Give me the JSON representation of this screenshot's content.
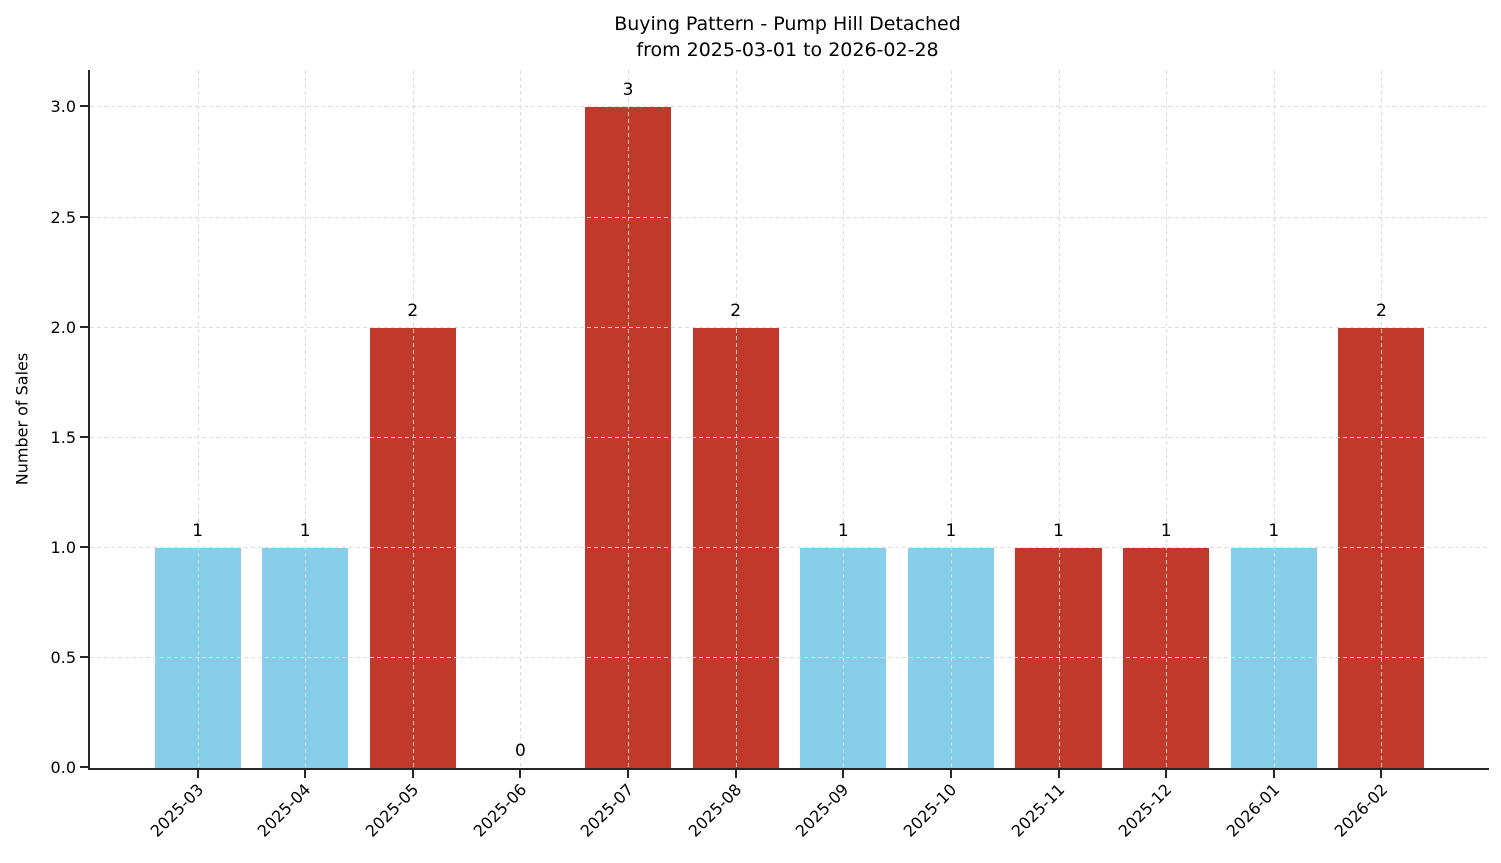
{
  "chart_data": {
    "type": "bar",
    "title": "Buying Pattern - Pump Hill Detached",
    "subtitle": "from 2025-03-01 to 2026-02-28",
    "xlabel": "",
    "ylabel": "Number of Sales",
    "categories": [
      "2025-03",
      "2025-04",
      "2025-05",
      "2025-06",
      "2025-07",
      "2025-08",
      "2025-09",
      "2025-10",
      "2025-11",
      "2025-12",
      "2026-01",
      "2026-02"
    ],
    "values": [
      1,
      1,
      2,
      0,
      3,
      2,
      1,
      1,
      1,
      1,
      1,
      2
    ],
    "bar_labels": [
      "1",
      "1",
      "2",
      "0",
      "3",
      "2",
      "1",
      "1",
      "1",
      "1",
      "1",
      "2"
    ],
    "bar_colors": [
      "#87ceeb",
      "#87ceeb",
      "#c0392b",
      null,
      "#c0392b",
      "#c0392b",
      "#87ceeb",
      "#87ceeb",
      "#c0392b",
      "#c0392b",
      "#87ceeb",
      "#c0392b"
    ],
    "yticks": [
      0.0,
      0.5,
      1.0,
      1.5,
      2.0,
      2.5,
      3.0
    ],
    "ytick_labels": [
      "0.0",
      "0.5",
      "1.0",
      "1.5",
      "2.0",
      "2.5",
      "3.0"
    ],
    "ylim": [
      0,
      3.17
    ],
    "grid": true,
    "grid_style": "dashed",
    "legend": null,
    "colors": {
      "red_bar": "#c0392b",
      "blue_bar": "#87ceeb",
      "grid": "#d9d9d9",
      "spine": "#262626",
      "text": "#000000",
      "background": "#ffffff"
    }
  }
}
